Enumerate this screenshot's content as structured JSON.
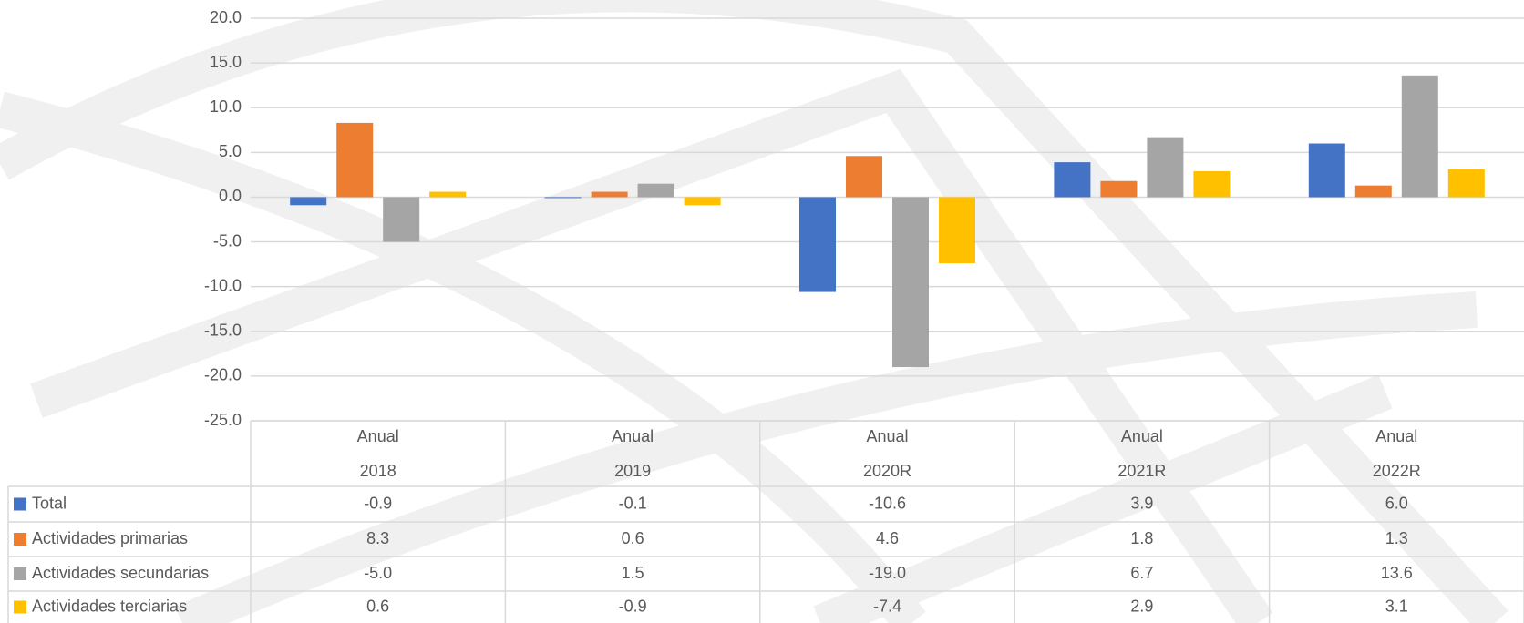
{
  "chart_data": {
    "type": "bar",
    "categories": [
      [
        "Anual",
        "2018"
      ],
      [
        "Anual",
        "2019"
      ],
      [
        "Anual",
        "2020R"
      ],
      [
        "Anual",
        "2021R"
      ],
      [
        "Anual",
        "2022R"
      ]
    ],
    "series": [
      {
        "name": "Total",
        "color": "#4472c4",
        "values": [
          -0.9,
          -0.1,
          -10.6,
          3.9,
          6.0
        ],
        "value_labels": [
          "-0.9",
          "-0.1",
          "-10.6",
          "3.9",
          "6.0"
        ]
      },
      {
        "name": "Actividades primarias",
        "color": "#ed7d31",
        "values": [
          8.3,
          0.6,
          4.6,
          1.8,
          1.3
        ],
        "value_labels": [
          "8.3",
          "0.6",
          "4.6",
          "1.8",
          "1.3"
        ]
      },
      {
        "name": "Actividades secundarias",
        "color": "#a5a5a5",
        "values": [
          -5.0,
          1.5,
          -19.0,
          6.7,
          13.6
        ],
        "value_labels": [
          "-5.0",
          "1.5",
          "-19.0",
          "6.7",
          "13.6"
        ]
      },
      {
        "name": "Actividades terciarias",
        "color": "#ffc000",
        "values": [
          0.6,
          -0.9,
          -7.4,
          2.9,
          3.1
        ],
        "value_labels": [
          "0.6",
          "-0.9",
          "-7.4",
          "2.9",
          "3.1"
        ]
      }
    ],
    "ylim": [
      -25,
      20
    ],
    "yticks": [
      {
        "value": -25,
        "label": "-25.0"
      },
      {
        "value": -20,
        "label": "-20.0"
      },
      {
        "value": -15,
        "label": "-15.0"
      },
      {
        "value": -10,
        "label": "-10.0"
      },
      {
        "value": -5,
        "label": "-5.0"
      },
      {
        "value": 0,
        "label": "0.0"
      },
      {
        "value": 5,
        "label": "5.0"
      },
      {
        "value": 10,
        "label": "10.0"
      },
      {
        "value": 15,
        "label": "15.0"
      },
      {
        "value": 20,
        "label": "20.0"
      }
    ],
    "grid": true
  }
}
